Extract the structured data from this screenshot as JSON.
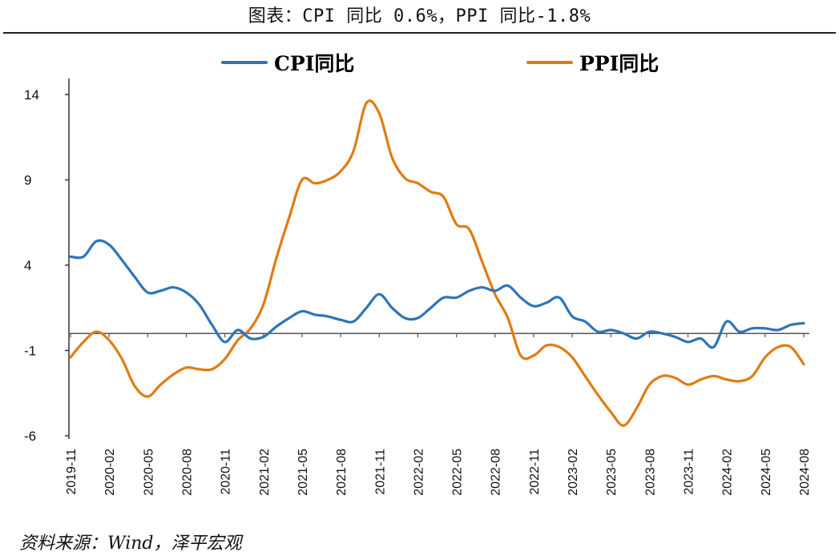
{
  "chart_data": {
    "type": "line",
    "title": "图表：CPI 同比 0.6%，PPI 同比-1.8%",
    "source": "资料来源：Wind，泽平宏观",
    "ylim": [
      -6,
      14
    ],
    "yticks": [
      14,
      9,
      4,
      -1,
      -6
    ],
    "legend_position": "top",
    "grid": false,
    "x": [
      "2019-11",
      "2019-12",
      "2020-01",
      "2020-02",
      "2020-03",
      "2020-04",
      "2020-05",
      "2020-06",
      "2020-07",
      "2020-08",
      "2020-09",
      "2020-10",
      "2020-11",
      "2020-12",
      "2021-01",
      "2021-02",
      "2021-03",
      "2021-04",
      "2021-05",
      "2021-06",
      "2021-07",
      "2021-08",
      "2021-09",
      "2021-10",
      "2021-11",
      "2021-12",
      "2022-01",
      "2022-02",
      "2022-03",
      "2022-04",
      "2022-05",
      "2022-06",
      "2022-07",
      "2022-08",
      "2022-09",
      "2022-10",
      "2022-11",
      "2022-12",
      "2023-01",
      "2023-02",
      "2023-03",
      "2023-04",
      "2023-05",
      "2023-06",
      "2023-07",
      "2023-08",
      "2023-09",
      "2023-10",
      "2023-11",
      "2023-12",
      "2024-01",
      "2024-02",
      "2024-03",
      "2024-04",
      "2024-05",
      "2024-06",
      "2024-07",
      "2024-08"
    ],
    "xticks": [
      "2019-11",
      "2020-02",
      "2020-05",
      "2020-08",
      "2020-11",
      "2021-02",
      "2021-05",
      "2021-08",
      "2021-11",
      "2022-02",
      "2022-05",
      "2022-08",
      "2022-11",
      "2023-02",
      "2023-05",
      "2023-08",
      "2023-11",
      "2024-02",
      "2024-05",
      "2024-08"
    ],
    "series": [
      {
        "name": "CPI同比",
        "color": "#2E75B6",
        "values": [
          4.5,
          4.5,
          5.4,
          5.2,
          4.3,
          3.3,
          2.4,
          2.5,
          2.7,
          2.4,
          1.7,
          0.5,
          -0.5,
          0.2,
          -0.3,
          -0.2,
          0.4,
          0.9,
          1.3,
          1.1,
          1.0,
          0.8,
          0.7,
          1.5,
          2.3,
          1.5,
          0.9,
          0.9,
          1.5,
          2.1,
          2.1,
          2.5,
          2.7,
          2.5,
          2.8,
          2.1,
          1.6,
          1.8,
          2.1,
          1.0,
          0.7,
          0.1,
          0.2,
          0.0,
          -0.3,
          0.1,
          0.0,
          -0.2,
          -0.5,
          -0.3,
          -0.8,
          0.7,
          0.1,
          0.3,
          0.3,
          0.2,
          0.5,
          0.6
        ]
      },
      {
        "name": "PPI同比",
        "color": "#E07B12",
        "values": [
          -1.4,
          -0.5,
          0.1,
          -0.4,
          -1.5,
          -3.1,
          -3.7,
          -3.0,
          -2.4,
          -2.0,
          -2.1,
          -2.1,
          -1.5,
          -0.4,
          0.3,
          1.7,
          4.4,
          6.8,
          9.0,
          8.8,
          9.0,
          9.5,
          10.7,
          13.5,
          12.9,
          10.3,
          9.1,
          8.8,
          8.3,
          8.0,
          6.4,
          6.1,
          4.2,
          2.3,
          0.9,
          -1.3,
          -1.3,
          -0.7,
          -0.8,
          -1.4,
          -2.5,
          -3.6,
          -4.6,
          -5.4,
          -4.4,
          -3.0,
          -2.5,
          -2.6,
          -3.0,
          -2.7,
          -2.5,
          -2.7,
          -2.8,
          -2.5,
          -1.4,
          -0.8,
          -0.8,
          -1.8
        ]
      }
    ]
  }
}
